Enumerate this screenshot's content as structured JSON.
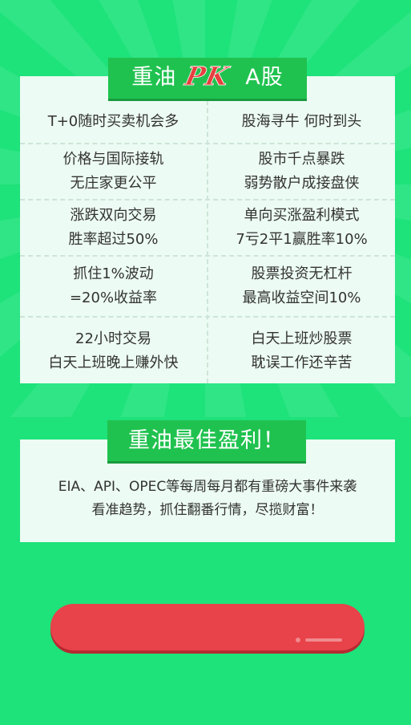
{
  "colors": {
    "background": "#1ee27a",
    "ray": "#3ee890",
    "panel": "#ecfbf3",
    "badge": "#20c24f",
    "pk_text": "#e73f3f",
    "cta_button": "#e8424a"
  },
  "compare": {
    "title_left": "重油",
    "title_logo": "PK",
    "title_right": "A股",
    "rows": [
      {
        "left": [
          "T+0随时买卖机会多"
        ],
        "right": [
          "股海寻牛 何时到头"
        ]
      },
      {
        "left": [
          "价格与国际接轨",
          "无庄家更公平"
        ],
        "right": [
          "股市千点暴跌",
          "弱势散户成接盘侠"
        ]
      },
      {
        "left": [
          "涨跌双向交易",
          "胜率超过50%"
        ],
        "right": [
          "单向买涨盈利模式",
          "7亏2平1赢胜率10%"
        ]
      },
      {
        "left": [
          "抓住1%波动",
          "=20%收益率"
        ],
        "right": [
          "股票投资无杠杆",
          "最高收益空间10%"
        ]
      },
      {
        "left": [
          "22小时交易",
          "白天上班晚上赚外快"
        ],
        "right": [
          "白天上班炒股票",
          "耽误工作还辛苦"
        ]
      }
    ]
  },
  "profit": {
    "title": "重油最佳盈利！",
    "line1": "EIA、API、OPEC等每周每月都有重磅大事件来袭",
    "line2": "看准趋势，抓住翻番行情，尽揽财富！"
  },
  "cta": {
    "icon": "swipe-indicator-icon"
  }
}
